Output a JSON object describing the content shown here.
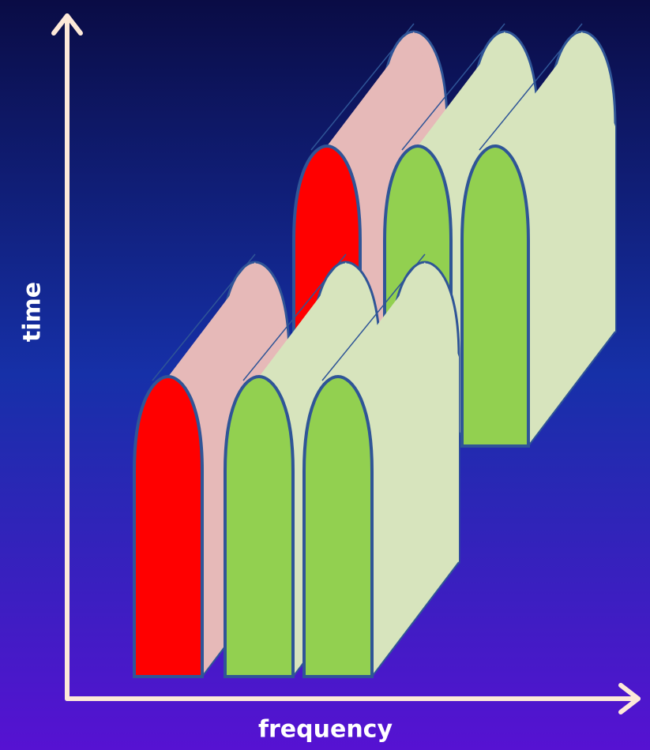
{
  "axes": {
    "y_label": "time",
    "x_label": "frequency"
  }
}
